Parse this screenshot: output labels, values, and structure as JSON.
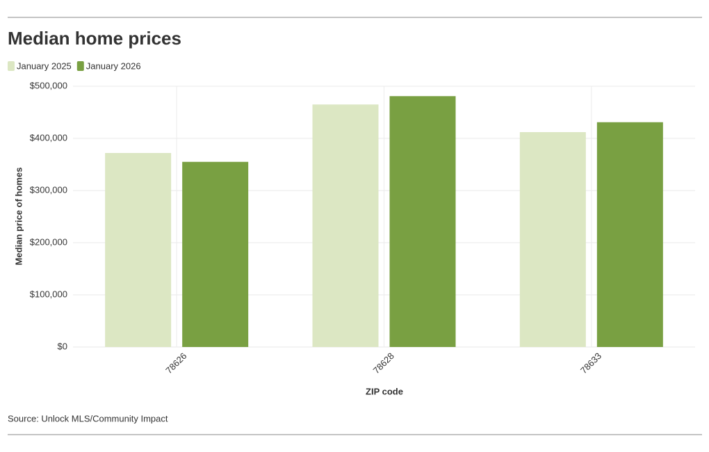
{
  "chart_data": {
    "type": "bar",
    "title": "Median home prices",
    "x_label": "ZIP code",
    "y_label": "Median price of homes",
    "source": "Source: Unlock MLS/Community Impact",
    "categories": [
      "78626",
      "78628",
      "78633"
    ],
    "series": [
      {
        "name": "January 2025",
        "color": "#dce7c3",
        "values": [
          372000,
          465000,
          412000
        ]
      },
      {
        "name": "January 2026",
        "color": "#79a042",
        "values": [
          355000,
          481000,
          431000
        ]
      }
    ],
    "ylim": [
      0,
      500000
    ],
    "yticks": [
      {
        "value": 0,
        "label": "$0"
      },
      {
        "value": 100000,
        "label": "$100,000"
      },
      {
        "value": 200000,
        "label": "$200,000"
      },
      {
        "value": 300000,
        "label": "$300,000"
      },
      {
        "value": 400000,
        "label": "$400,000"
      },
      {
        "value": 500000,
        "label": "$500,000"
      }
    ],
    "grid": true
  }
}
